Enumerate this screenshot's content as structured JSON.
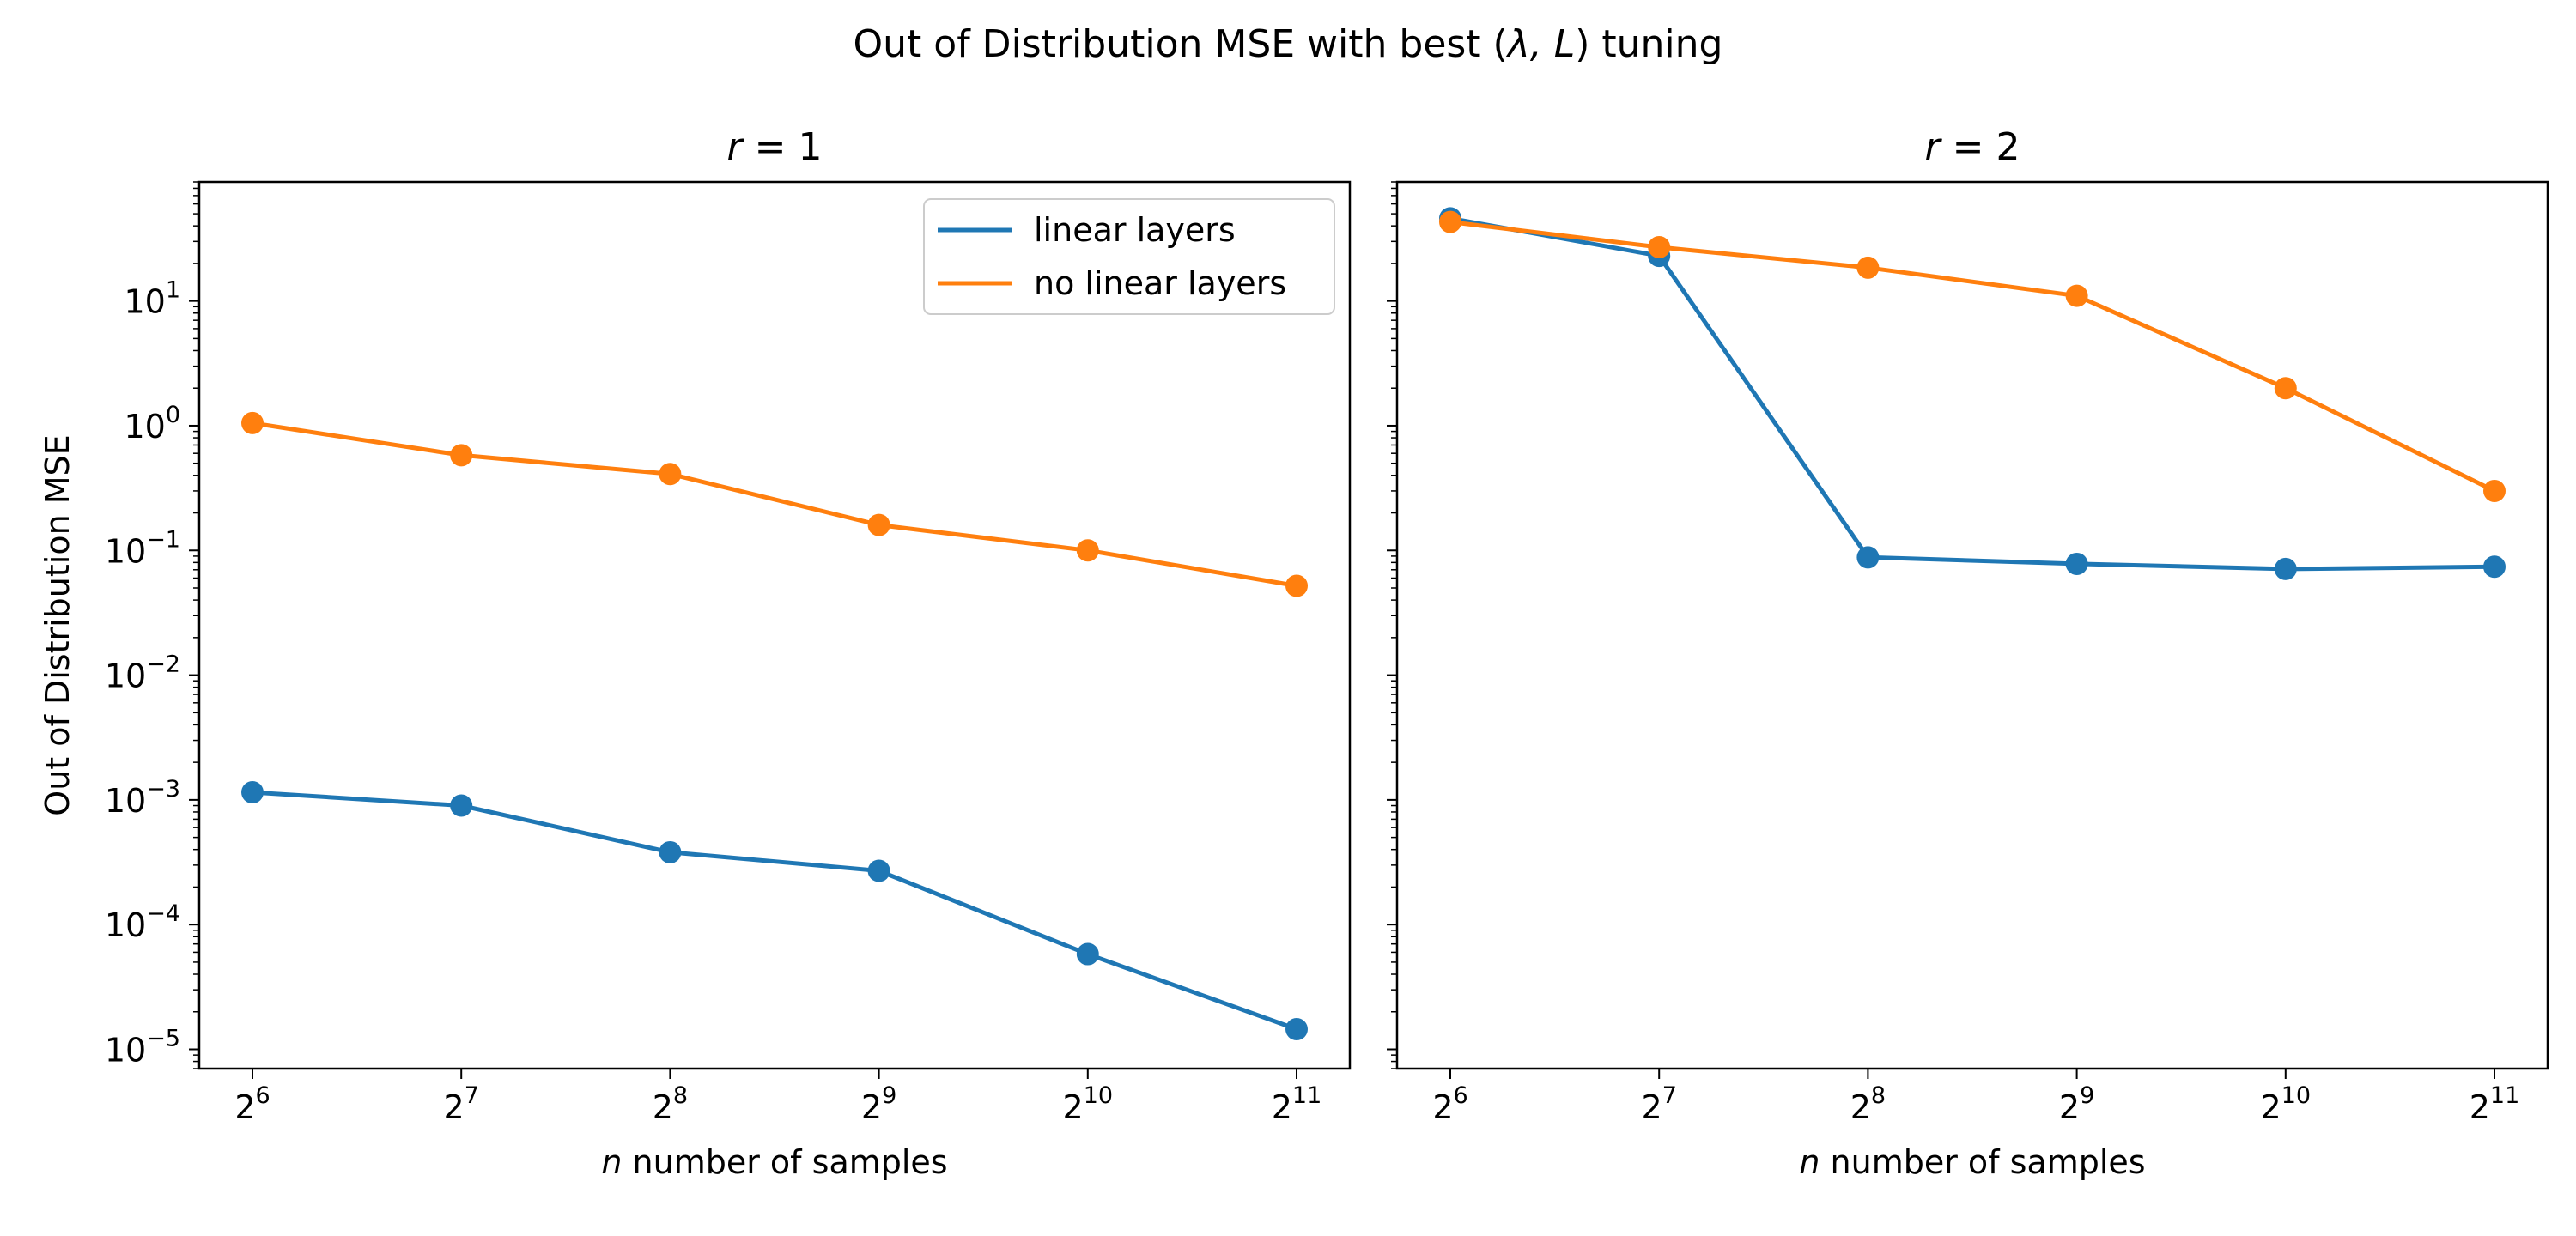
{
  "figure": {
    "title_prefix": "Out of Distribution MSE with best (",
    "title_symbols": "λ, L",
    "title_suffix": ") tuning"
  },
  "colors": {
    "linear_layers": "#1f77b4",
    "no_linear_layers": "#ff7f0e"
  },
  "chart_data": [
    {
      "type": "line",
      "title_var": "r",
      "title_value": " = 1",
      "xlabel_var": "n",
      "xlabel_text": " number of samples",
      "ylabel": "Out of Distribution MSE",
      "x_scale": "log2",
      "y_scale": "log10",
      "x": [
        64,
        128,
        256,
        512,
        1024,
        2048
      ],
      "x_tick_labels": [
        {
          "base": "2",
          "exp": "6"
        },
        {
          "base": "2",
          "exp": "7"
        },
        {
          "base": "2",
          "exp": "8"
        },
        {
          "base": "2",
          "exp": "9"
        },
        {
          "base": "2",
          "exp": "10"
        },
        {
          "base": "2",
          "exp": "11"
        }
      ],
      "y_tick_labels": [
        {
          "base": "10",
          "exp": "1"
        },
        {
          "base": "10",
          "exp": "0"
        },
        {
          "base": "10",
          "exp": "−1"
        },
        {
          "base": "10",
          "exp": "−2"
        },
        {
          "base": "10",
          "exp": "−3"
        },
        {
          "base": "10",
          "exp": "−4"
        },
        {
          "base": "10",
          "exp": "−5"
        }
      ],
      "ylim": [
        7e-06,
        90
      ],
      "legend": "top-right",
      "grid": false,
      "series": [
        {
          "name": "linear layers",
          "color": "#1f77b4",
          "values": [
            0.00115,
            0.0009,
            0.00038,
            0.00027,
            5.8e-05,
            1.45e-05
          ]
        },
        {
          "name": "no linear layers",
          "color": "#ff7f0e",
          "values": [
            1.05,
            0.58,
            0.41,
            0.16,
            0.1,
            0.052
          ]
        }
      ]
    },
    {
      "type": "line",
      "title_var": "r",
      "title_value": " = 2",
      "xlabel_var": "n",
      "xlabel_text": " number of samples",
      "x_scale": "log2",
      "y_scale": "log10",
      "x": [
        64,
        128,
        256,
        512,
        1024,
        2048
      ],
      "x_tick_labels": [
        {
          "base": "2",
          "exp": "6"
        },
        {
          "base": "2",
          "exp": "7"
        },
        {
          "base": "2",
          "exp": "8"
        },
        {
          "base": "2",
          "exp": "9"
        },
        {
          "base": "2",
          "exp": "10"
        },
        {
          "base": "2",
          "exp": "11"
        }
      ],
      "ylim": [
        7e-06,
        90
      ],
      "grid": false,
      "series": [
        {
          "name": "linear layers",
          "color": "#1f77b4",
          "values": [
            46,
            23,
            0.088,
            0.078,
            0.071,
            0.074
          ]
        },
        {
          "name": "no linear layers",
          "color": "#ff7f0e",
          "values": [
            43,
            27,
            18.5,
            11,
            2,
            0.3
          ]
        }
      ]
    }
  ]
}
